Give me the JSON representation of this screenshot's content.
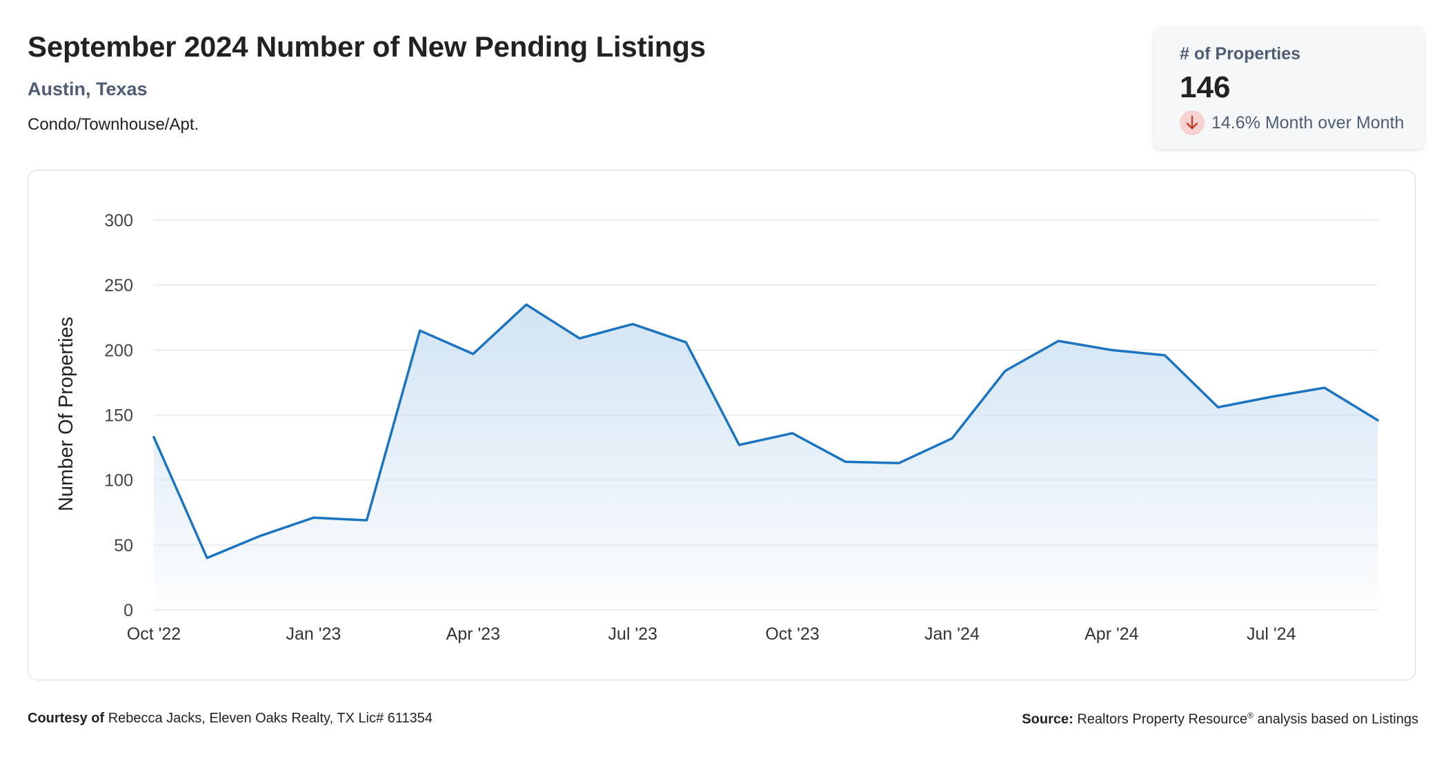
{
  "header": {
    "title": "September 2024 Number of New Pending Listings",
    "location": "Austin, Texas",
    "property_type": "Condo/Townhouse/Apt."
  },
  "stat": {
    "label": "# of Properties",
    "value": "146",
    "change_text": "14.6% Month over Month",
    "direction": "down",
    "icon": "arrow-down-icon"
  },
  "footer": {
    "courtesy_label": "Courtesy of",
    "courtesy_text": "Rebecca Jacks, Eleven Oaks Realty, TX Lic# 611354",
    "source_label": "Source:",
    "source_text_1": "Realtors Property Resource",
    "source_reg": "®",
    "source_text_2": " analysis based on Listings"
  },
  "colors": {
    "line": "#1a74c2",
    "area_top": "#cfe2f3",
    "grid": "#e3e7ee",
    "label": "#4e5d74"
  },
  "chart_data": {
    "type": "area",
    "ylabel": "Number Of Properties",
    "ylim": [
      0,
      300
    ],
    "yticks": [
      0,
      50,
      100,
      150,
      200,
      250,
      300
    ],
    "grid": true,
    "x": [
      "2022-10",
      "2022-11",
      "2022-12",
      "2023-01",
      "2023-02",
      "2023-03",
      "2023-04",
      "2023-05",
      "2023-06",
      "2023-07",
      "2023-08",
      "2023-09",
      "2023-10",
      "2023-11",
      "2023-12",
      "2024-01",
      "2024-02",
      "2024-03",
      "2024-04",
      "2024-05",
      "2024-06",
      "2024-07",
      "2024-08",
      "2024-09"
    ],
    "x_tick_labels": [
      {
        "index": 0,
        "label": "Oct '22"
      },
      {
        "index": 3,
        "label": "Jan '23"
      },
      {
        "index": 6,
        "label": "Apr '23"
      },
      {
        "index": 9,
        "label": "Jul '23"
      },
      {
        "index": 12,
        "label": "Oct '23"
      },
      {
        "index": 15,
        "label": "Jan '24"
      },
      {
        "index": 18,
        "label": "Apr '24"
      },
      {
        "index": 21,
        "label": "Jul '24"
      }
    ],
    "values": [
      133,
      40,
      57,
      71,
      69,
      215,
      197,
      235,
      209,
      220,
      206,
      127,
      136,
      114,
      113,
      132,
      184,
      207,
      200,
      196,
      156,
      164,
      171,
      146
    ]
  }
}
